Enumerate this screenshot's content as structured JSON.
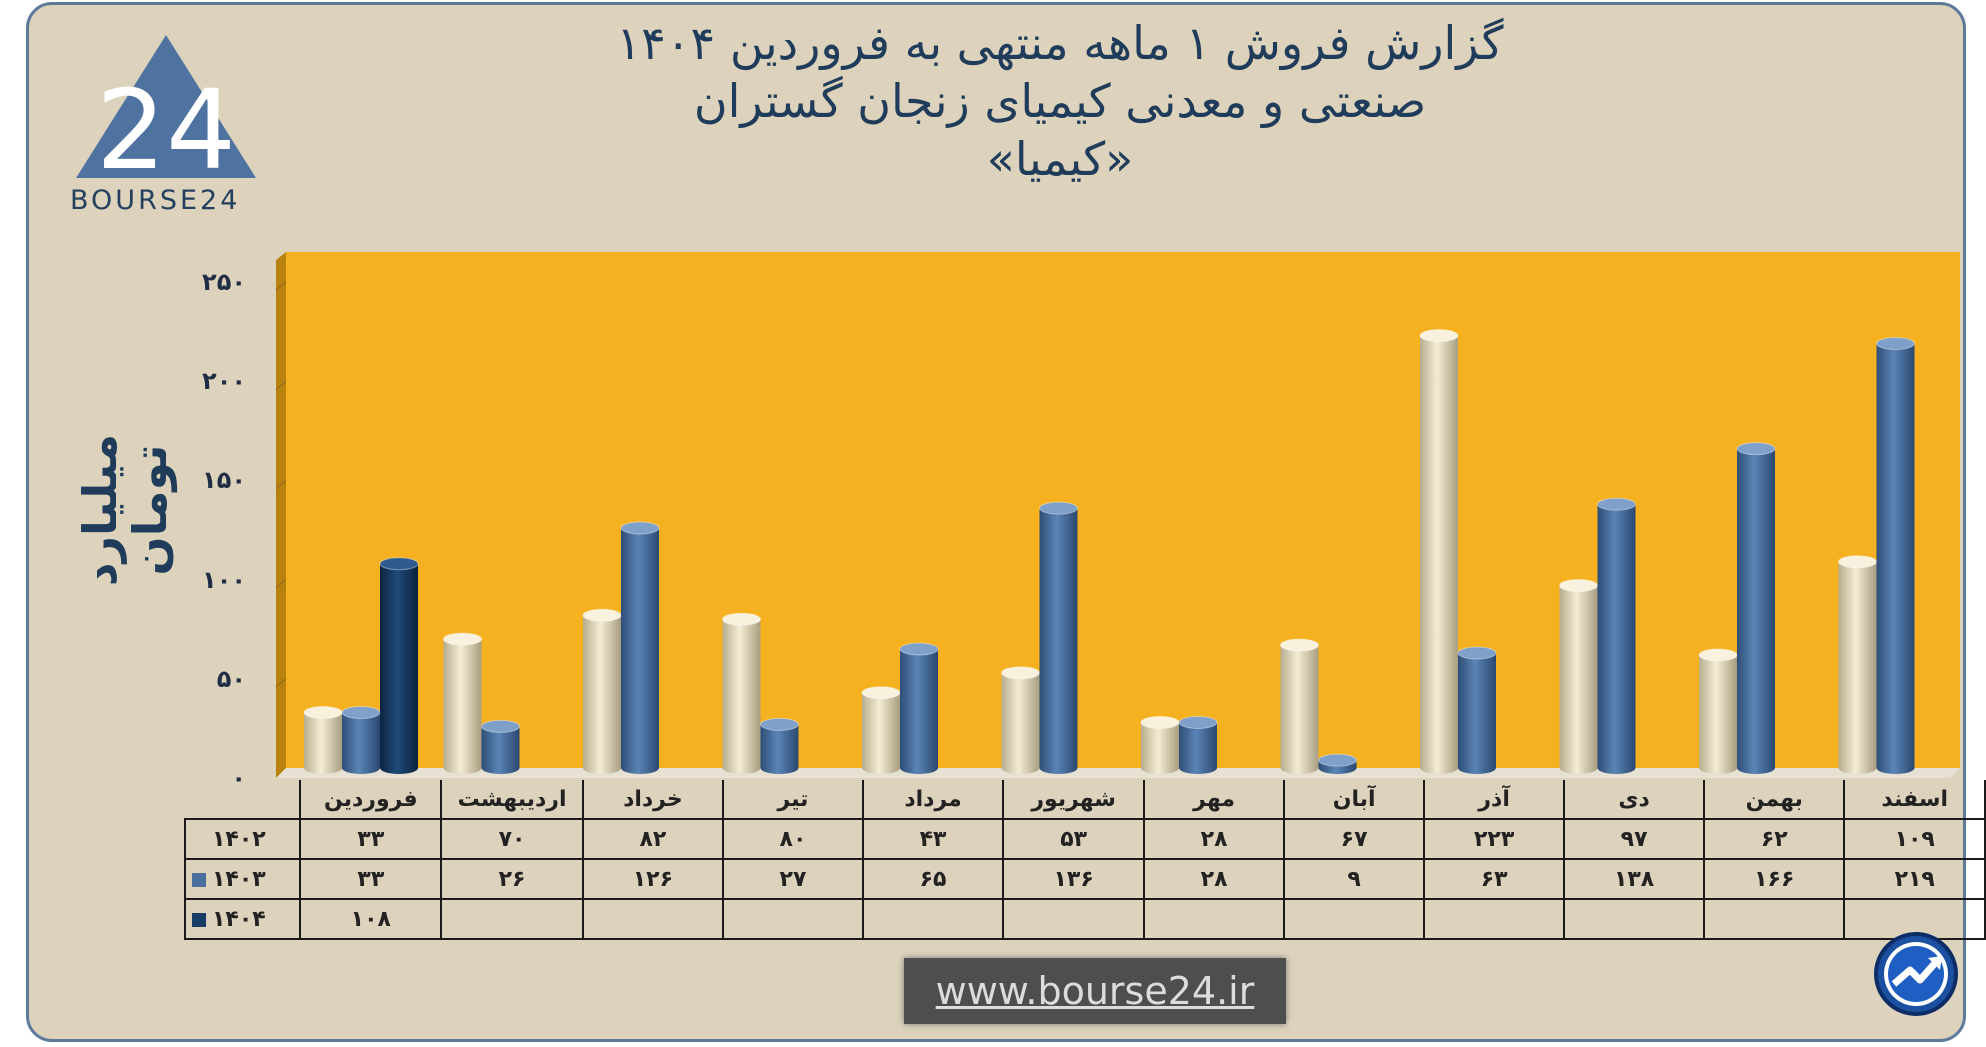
{
  "title": {
    "line1": "گزارش  فروش ۱ ماهه منتهی به فروردین ۱۴۰۴",
    "line2": "صنعتی و معدنی کیمیای زنجان گستران",
    "line3": "«کیمیا»"
  },
  "logo": {
    "text": "BOURSE24",
    "mark": "24"
  },
  "url": "www.bourse24.ir",
  "colors": {
    "plot_bg": "#f5b11f",
    "frame_bg": "#ddd3bd",
    "series_1402": "#e9dfc2",
    "series_1403": "#4a6f9c",
    "series_1404": "#183d66",
    "title": "#1f3c5a"
  },
  "chart_data": {
    "type": "bar",
    "ylabel": "میلیارد تومان",
    "ylim": [
      0,
      250
    ],
    "yticks": [
      "۰",
      "۵۰",
      "۱۰۰",
      "۱۵۰",
      "۲۰۰",
      "۲۵۰"
    ],
    "ytick_values": [
      0,
      50,
      100,
      150,
      200,
      250
    ],
    "categories": [
      "فروردین",
      "اردیبهشت",
      "خرداد",
      "تیر",
      "مرداد",
      "شهریور",
      "مهر",
      "آبان",
      "آذر",
      "دی",
      "بهمن",
      "اسفند"
    ],
    "series": [
      {
        "name": "۱۴۰۲",
        "values": [
          33,
          70,
          82,
          80,
          43,
          53,
          28,
          67,
          223,
          97,
          62,
          109
        ],
        "labels": [
          "۳۳",
          "۷۰",
          "۸۲",
          "۸۰",
          "۴۳",
          "۵۳",
          "۲۸",
          "۶۷",
          "۲۲۳",
          "۹۷",
          "۶۲",
          "۱۰۹"
        ]
      },
      {
        "name": "۱۴۰۳",
        "values": [
          33,
          26,
          126,
          27,
          65,
          136,
          28,
          9,
          63,
          138,
          166,
          219
        ],
        "labels": [
          "۳۳",
          "۲۶",
          "۱۲۶",
          "۲۷",
          "۶۵",
          "۱۳۶",
          "۲۸",
          "۹",
          "۶۳",
          "۱۳۸",
          "۱۶۶",
          "۲۱۹"
        ]
      },
      {
        "name": "۱۴۰۴",
        "values": [
          108,
          null,
          null,
          null,
          null,
          null,
          null,
          null,
          null,
          null,
          null,
          null
        ],
        "labels": [
          "۱۰۸",
          "",
          "",
          "",
          "",
          "",
          "",
          "",
          "",
          "",
          "",
          ""
        ]
      }
    ],
    "grid": true,
    "legend": "table-bottom"
  }
}
